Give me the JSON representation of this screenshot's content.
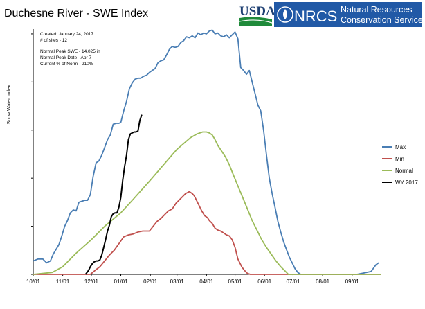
{
  "logos": {
    "usda": "USDA",
    "nrcs": "NRCS",
    "org_line1": "Natural Resources",
    "org_line2": "Conservation Service"
  },
  "info": {
    "created": "Created: January 24, 2017",
    "sites": "# of sites - 12",
    "peak_swe": "Normal Peak SWE - 14.025  in",
    "peak_date": "Normal Peak Date - Apr 7",
    "pct_norm": "Current % of Norm - 210%"
  },
  "colors": {
    "max": "#4a7eb4",
    "min": "#c0504d",
    "normal": "#9bbb59",
    "wy": "#000000",
    "axis": "#000000"
  },
  "chart_data": {
    "type": "line",
    "title": "Duchesne River - SWE Index",
    "xlabel": "",
    "ylabel": "Snow Water Index",
    "x_unit": "day of water year (0 = Oct 1)",
    "xlim": [
      0,
      365
    ],
    "ylim": [
      0,
      255
    ],
    "x_ticks": [
      {
        "label": "10/01",
        "x": 0
      },
      {
        "label": "11/01",
        "x": 31
      },
      {
        "label": "12/01",
        "x": 61
      },
      {
        "label": "01/01",
        "x": 92
      },
      {
        "label": "02/01",
        "x": 123
      },
      {
        "label": "03/01",
        "x": 151
      },
      {
        "label": "04/01",
        "x": 182
      },
      {
        "label": "05/01",
        "x": 212
      },
      {
        "label": "06/01",
        "x": 243
      },
      {
        "label": "07/01",
        "x": 273
      },
      {
        "label": "08/01",
        "x": 304
      },
      {
        "label": "09/01",
        "x": 335
      }
    ],
    "y_ticks": [
      0,
      50,
      100,
      150,
      200,
      250
    ],
    "grid": false,
    "legend": "right",
    "series": [
      {
        "name": "Max",
        "color_key": "max",
        "x": [
          0,
          5,
          10,
          14,
          18,
          21,
          24,
          27,
          30,
          33,
          36,
          39,
          42,
          45,
          48,
          51,
          54,
          57,
          60,
          63,
          66,
          69,
          72,
          75,
          78,
          81,
          84,
          87,
          90,
          92,
          95,
          98,
          101,
          104,
          107,
          110,
          113,
          116,
          119,
          122,
          125,
          128,
          131,
          134,
          137,
          140,
          143,
          146,
          149,
          152,
          155,
          158,
          161,
          164,
          167,
          170,
          173,
          176,
          179,
          182,
          185,
          188,
          191,
          194,
          197,
          200,
          203,
          206,
          209,
          212,
          215,
          218,
          221,
          224,
          227,
          230,
          233,
          236,
          239,
          242,
          245,
          248,
          251,
          254,
          257,
          260,
          263,
          266,
          269,
          272,
          275,
          278,
          281,
          284,
          287,
          295,
          320,
          340,
          350,
          355,
          360,
          363
        ],
        "y": [
          14,
          16,
          16,
          12,
          14,
          21,
          26,
          31,
          40,
          50,
          56,
          64,
          67,
          66,
          75,
          76,
          77,
          77,
          83,
          102,
          116,
          118,
          124,
          132,
          140,
          145,
          156,
          157,
          157,
          158,
          170,
          180,
          193,
          199,
          203,
          204,
          204,
          206,
          207,
          210,
          212,
          214,
          220,
          222,
          223,
          228,
          234,
          237,
          236,
          237,
          241,
          243,
          247,
          246,
          248,
          246,
          251,
          249,
          251,
          250,
          253,
          254,
          250,
          251,
          248,
          247,
          249,
          246,
          249,
          252,
          245,
          215,
          212,
          208,
          212,
          200,
          188,
          176,
          170,
          150,
          124,
          100,
          84,
          70,
          55,
          44,
          34,
          26,
          18,
          12,
          6,
          2,
          0,
          0,
          0,
          0,
          0,
          0,
          2,
          3,
          10,
          12
        ]
      },
      {
        "name": "Min",
        "color_key": "min",
        "x": [
          0,
          44,
          60,
          66,
          70,
          75,
          80,
          85,
          90,
          95,
          100,
          105,
          110,
          115,
          118,
          122,
          126,
          130,
          134,
          138,
          142,
          146,
          150,
          154,
          158,
          160,
          162,
          164,
          167,
          169,
          171,
          174,
          177,
          180,
          183,
          185,
          188,
          191,
          194,
          197,
          200,
          203,
          206,
          209,
          212,
          215,
          219,
          222,
          225,
          228,
          240,
          365
        ],
        "y": [
          0,
          0,
          0,
          5,
          8,
          14,
          20,
          25,
          32,
          39,
          41,
          42,
          44,
          45,
          45,
          45,
          50,
          55,
          58,
          62,
          66,
          68,
          74,
          78,
          82,
          84,
          85,
          86,
          84,
          82,
          78,
          72,
          66,
          61,
          59,
          56,
          53,
          48,
          46,
          45,
          43,
          41,
          40,
          36,
          28,
          16,
          8,
          4,
          1,
          0,
          0,
          0
        ]
      },
      {
        "name": "Normal",
        "color_key": "normal",
        "x": [
          0,
          20,
          31,
          45,
          61,
          75,
          92,
          105,
          123,
          137,
          151,
          165,
          172,
          178,
          182,
          185,
          188,
          191,
          194,
          198,
          202,
          206,
          210,
          215,
          220,
          225,
          230,
          235,
          240,
          245,
          250,
          255,
          260,
          265,
          268,
          272,
          275,
          280,
          365
        ],
        "y": [
          0,
          2,
          8,
          22,
          36,
          50,
          64,
          78,
          98,
          114,
          130,
          142,
          146,
          148,
          148,
          147,
          145,
          140,
          134,
          128,
          122,
          114,
          104,
          92,
          80,
          68,
          56,
          46,
          36,
          28,
          21,
          14,
          8,
          3,
          0,
          0,
          0,
          0,
          0
        ]
      },
      {
        "name": "WY 2017",
        "color_key": "wy",
        "x": [
          55,
          58,
          60,
          62,
          64,
          66,
          68,
          70,
          72,
          74,
          76,
          78,
          80,
          82,
          84,
          86,
          88,
          90,
          92,
          94,
          96,
          98,
          100,
          102,
          104,
          106,
          108,
          110,
          112,
          114
        ],
        "y": [
          0,
          4,
          8,
          11,
          13,
          14,
          14,
          15,
          20,
          28,
          36,
          45,
          51,
          60,
          63,
          64,
          64,
          70,
          80,
          98,
          112,
          124,
          140,
          146,
          147,
          148,
          148,
          149,
          160,
          166
        ]
      }
    ]
  }
}
